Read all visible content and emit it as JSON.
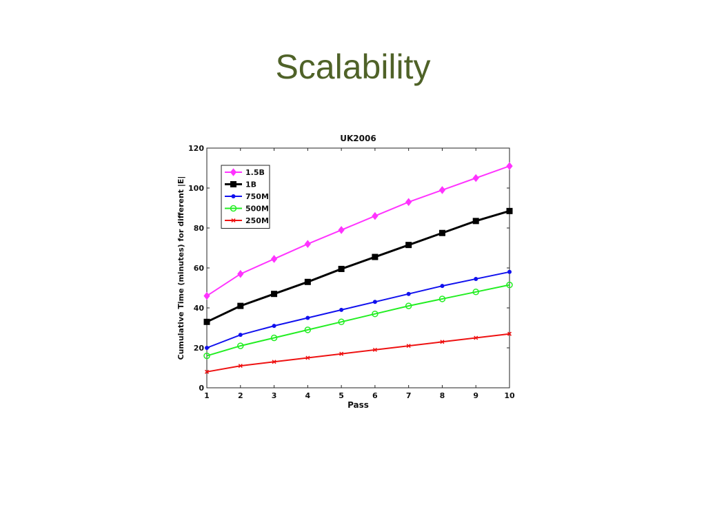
{
  "slide": {
    "title": "Scalability"
  },
  "chart_data": {
    "type": "line",
    "title": "UK2006",
    "xlabel": "Pass",
    "ylabel": "Cumulative Time (minutes) for different |E|",
    "xlim": [
      1,
      10
    ],
    "ylim": [
      0,
      120
    ],
    "x": [
      1,
      2,
      3,
      4,
      5,
      6,
      7,
      8,
      9,
      10
    ],
    "x_ticks": [
      1,
      2,
      3,
      4,
      5,
      6,
      7,
      8,
      9,
      10
    ],
    "y_ticks": [
      0,
      20,
      40,
      60,
      80,
      100,
      120
    ],
    "grid": false,
    "legend_position": "top-left",
    "series": [
      {
        "name": "1.5B",
        "color": "#ff33ff",
        "marker": "diamond",
        "values": [
          46,
          57,
          64.5,
          72,
          79,
          86,
          93,
          99,
          105,
          111
        ]
      },
      {
        "name": "1B",
        "color": "#000000",
        "marker": "square",
        "values": [
          33,
          41,
          47,
          53,
          59.5,
          65.5,
          71.5,
          77.5,
          83.5,
          88.5
        ]
      },
      {
        "name": "750M",
        "color": "#1010ee",
        "marker": "dot",
        "values": [
          20,
          26.5,
          31,
          35,
          39,
          43,
          47,
          51,
          54.5,
          58
        ]
      },
      {
        "name": "500M",
        "color": "#22ee22",
        "marker": "circle",
        "values": [
          16,
          21,
          25,
          29,
          33,
          37,
          41,
          44.5,
          48,
          51.5
        ]
      },
      {
        "name": "250M",
        "color": "#ee1111",
        "marker": "x",
        "values": [
          8,
          11,
          13,
          15,
          17,
          19,
          21,
          23,
          25,
          27
        ]
      }
    ]
  }
}
